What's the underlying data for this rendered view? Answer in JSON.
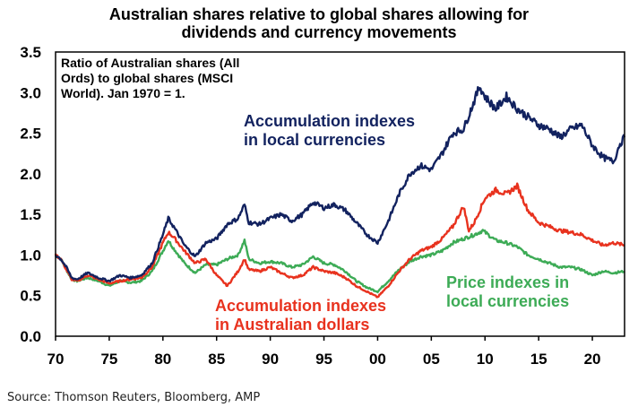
{
  "chart_data": {
    "type": "line",
    "title_line1": "Australian shares relative to global shares allowing for",
    "title_line2": "dividends and currency movements",
    "annotation_lines": [
      "Ratio of Australian shares (All",
      "Ords) to global shares (MSCI",
      "World). Jan 1970 = 1."
    ],
    "ylim": [
      0,
      3.5
    ],
    "xlim": [
      1970,
      2023
    ],
    "y_ticks": [
      "0.0",
      "0.5",
      "1.0",
      "1.5",
      "2.0",
      "2.5",
      "3.0",
      "3.5"
    ],
    "x_ticks": [
      "70",
      "75",
      "80",
      "85",
      "90",
      "95",
      "00",
      "05",
      "10",
      "15",
      "20"
    ],
    "series": [
      {
        "name": "Accumulation indexes in local currencies",
        "label_lines": [
          "Accumulation indexes",
          "in local currencies"
        ],
        "color": "#12225f",
        "points": [
          [
            1970,
            1.0
          ],
          [
            1970.5,
            0.95
          ],
          [
            1971,
            0.85
          ],
          [
            1971.5,
            0.72
          ],
          [
            1972,
            0.7
          ],
          [
            1973,
            0.78
          ],
          [
            1974,
            0.72
          ],
          [
            1975,
            0.68
          ],
          [
            1976,
            0.75
          ],
          [
            1977,
            0.72
          ],
          [
            1978,
            0.75
          ],
          [
            1979,
            0.9
          ],
          [
            1980,
            1.25
          ],
          [
            1980.5,
            1.45
          ],
          [
            1981,
            1.35
          ],
          [
            1982,
            1.12
          ],
          [
            1983,
            0.98
          ],
          [
            1984,
            1.15
          ],
          [
            1985,
            1.2
          ],
          [
            1986,
            1.38
          ],
          [
            1987,
            1.45
          ],
          [
            1987.6,
            1.62
          ],
          [
            1988,
            1.4
          ],
          [
            1989,
            1.38
          ],
          [
            1990,
            1.45
          ],
          [
            1991,
            1.5
          ],
          [
            1992,
            1.42
          ],
          [
            1993,
            1.5
          ],
          [
            1994,
            1.65
          ],
          [
            1995,
            1.58
          ],
          [
            1996,
            1.62
          ],
          [
            1997,
            1.55
          ],
          [
            1998,
            1.4
          ],
          [
            1999,
            1.25
          ],
          [
            2000,
            1.15
          ],
          [
            2001,
            1.42
          ],
          [
            2002,
            1.75
          ],
          [
            2003,
            2.0
          ],
          [
            2004,
            2.1
          ],
          [
            2005,
            2.05
          ],
          [
            2006,
            2.25
          ],
          [
            2007,
            2.5
          ],
          [
            2008,
            2.55
          ],
          [
            2009,
            2.9
          ],
          [
            2009.5,
            3.08
          ],
          [
            2010,
            2.95
          ],
          [
            2011,
            2.8
          ],
          [
            2012,
            2.95
          ],
          [
            2013,
            2.8
          ],
          [
            2014,
            2.7
          ],
          [
            2015,
            2.6
          ],
          [
            2016,
            2.55
          ],
          [
            2017,
            2.45
          ],
          [
            2018,
            2.55
          ],
          [
            2019,
            2.6
          ],
          [
            2020,
            2.35
          ],
          [
            2021,
            2.2
          ],
          [
            2022,
            2.15
          ],
          [
            2022.5,
            2.35
          ],
          [
            2023,
            2.45
          ]
        ]
      },
      {
        "name": "Accumulation indexes in Australian dollars",
        "label_lines": [
          "Accumulation indexes",
          "in Australian dollars"
        ],
        "color": "#e8321e",
        "points": [
          [
            1970,
            1.0
          ],
          [
            1970.5,
            0.95
          ],
          [
            1971,
            0.82
          ],
          [
            1971.5,
            0.7
          ],
          [
            1972,
            0.68
          ],
          [
            1973,
            0.75
          ],
          [
            1974,
            0.7
          ],
          [
            1975,
            0.65
          ],
          [
            1976,
            0.68
          ],
          [
            1977,
            0.7
          ],
          [
            1978,
            0.72
          ],
          [
            1979,
            0.85
          ],
          [
            1980,
            1.15
          ],
          [
            1980.5,
            1.28
          ],
          [
            1981,
            1.22
          ],
          [
            1982,
            1.05
          ],
          [
            1983,
            0.9
          ],
          [
            1984,
            0.95
          ],
          [
            1985,
            0.75
          ],
          [
            1986,
            0.62
          ],
          [
            1987,
            0.8
          ],
          [
            1987.6,
            0.95
          ],
          [
            1988,
            0.82
          ],
          [
            1989,
            0.8
          ],
          [
            1990,
            0.85
          ],
          [
            1991,
            0.78
          ],
          [
            1992,
            0.72
          ],
          [
            1993,
            0.75
          ],
          [
            1994,
            0.85
          ],
          [
            1995,
            0.8
          ],
          [
            1996,
            0.78
          ],
          [
            1997,
            0.72
          ],
          [
            1998,
            0.62
          ],
          [
            1999,
            0.55
          ],
          [
            2000,
            0.48
          ],
          [
            2001,
            0.62
          ],
          [
            2002,
            0.8
          ],
          [
            2003,
            0.95
          ],
          [
            2004,
            1.05
          ],
          [
            2005,
            1.1
          ],
          [
            2006,
            1.2
          ],
          [
            2007,
            1.35
          ],
          [
            2008,
            1.6
          ],
          [
            2008.5,
            1.3
          ],
          [
            2009,
            1.4
          ],
          [
            2010,
            1.7
          ],
          [
            2011,
            1.8
          ],
          [
            2012,
            1.75
          ],
          [
            2013,
            1.85
          ],
          [
            2014,
            1.55
          ],
          [
            2015,
            1.4
          ],
          [
            2016,
            1.35
          ],
          [
            2017,
            1.3
          ],
          [
            2018,
            1.28
          ],
          [
            2019,
            1.25
          ],
          [
            2020,
            1.18
          ],
          [
            2021,
            1.12
          ],
          [
            2022,
            1.15
          ],
          [
            2023,
            1.12
          ]
        ]
      },
      {
        "name": "Price indexes in local currencies",
        "label_lines": [
          "Price indexes in",
          "local currencies"
        ],
        "color": "#3dab56",
        "points": [
          [
            1970,
            1.0
          ],
          [
            1970.5,
            0.95
          ],
          [
            1971,
            0.82
          ],
          [
            1971.5,
            0.7
          ],
          [
            1972,
            0.68
          ],
          [
            1973,
            0.72
          ],
          [
            1974,
            0.68
          ],
          [
            1975,
            0.62
          ],
          [
            1976,
            0.68
          ],
          [
            1977,
            0.66
          ],
          [
            1978,
            0.68
          ],
          [
            1979,
            0.8
          ],
          [
            1980,
            1.05
          ],
          [
            1980.5,
            1.18
          ],
          [
            1981,
            1.08
          ],
          [
            1982,
            0.9
          ],
          [
            1983,
            0.78
          ],
          [
            1984,
            0.88
          ],
          [
            1985,
            0.88
          ],
          [
            1986,
            0.95
          ],
          [
            1987,
            1.0
          ],
          [
            1987.6,
            1.18
          ],
          [
            1988,
            0.95
          ],
          [
            1989,
            0.9
          ],
          [
            1990,
            0.92
          ],
          [
            1991,
            0.9
          ],
          [
            1992,
            0.85
          ],
          [
            1993,
            0.88
          ],
          [
            1994,
            0.98
          ],
          [
            1995,
            0.9
          ],
          [
            1996,
            0.88
          ],
          [
            1997,
            0.8
          ],
          [
            1998,
            0.68
          ],
          [
            1999,
            0.6
          ],
          [
            2000,
            0.55
          ],
          [
            2001,
            0.68
          ],
          [
            2002,
            0.82
          ],
          [
            2003,
            0.92
          ],
          [
            2004,
            0.98
          ],
          [
            2005,
            1.0
          ],
          [
            2006,
            1.05
          ],
          [
            2007,
            1.15
          ],
          [
            2008,
            1.2
          ],
          [
            2009,
            1.25
          ],
          [
            2009.8,
            1.3
          ],
          [
            2010,
            1.28
          ],
          [
            2011,
            1.18
          ],
          [
            2012,
            1.15
          ],
          [
            2013,
            1.1
          ],
          [
            2014,
            1.0
          ],
          [
            2015,
            0.95
          ],
          [
            2016,
            0.9
          ],
          [
            2017,
            0.85
          ],
          [
            2018,
            0.85
          ],
          [
            2019,
            0.82
          ],
          [
            2020,
            0.75
          ],
          [
            2021,
            0.8
          ],
          [
            2022,
            0.78
          ],
          [
            2023,
            0.8
          ]
        ]
      }
    ]
  },
  "source": "Source: Thomson Reuters, Bloomberg, AMP"
}
